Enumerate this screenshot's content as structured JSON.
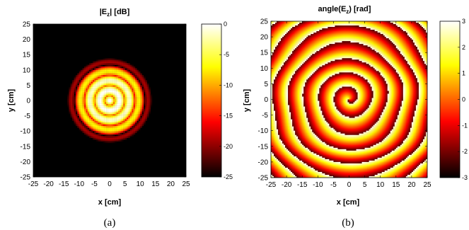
{
  "chart_data": [
    {
      "type": "heatmap",
      "title_main": "|E",
      "title_sub": "z",
      "title_end": "| [dB]",
      "xlabel": "x [cm]",
      "ylabel": "y [cm]",
      "xlim": [
        -25,
        25
      ],
      "ylim": [
        -25,
        25
      ],
      "xticks": [
        -25,
        -20,
        -15,
        -10,
        -5,
        0,
        5,
        10,
        15,
        20,
        25
      ],
      "yticks": [
        25,
        20,
        15,
        10,
        5,
        0,
        -5,
        -10,
        -15,
        -20,
        -25
      ],
      "xtick_labels": [
        "-25",
        "-20",
        "-15",
        "-10",
        "-5",
        "0",
        "5",
        "10",
        "15",
        "20",
        "25"
      ],
      "ytick_labels": [
        "25",
        "20",
        "15",
        "10",
        "5",
        "0",
        "-5",
        "-10",
        "-15",
        "-20",
        "-25"
      ],
      "colorbar": {
        "range": [
          -25,
          0
        ],
        "ticks": [
          0,
          -5,
          -10,
          -15,
          -20,
          -25
        ],
        "tick_labels": [
          "0",
          "-5",
          "-10",
          "-15",
          "-20",
          "-25"
        ]
      },
      "colormap": "hot",
      "caption": "(a)"
    },
    {
      "type": "heatmap",
      "title_main": "angle(E",
      "title_sub": "z",
      "title_end": ") [rad]",
      "xlabel": "x [cm]",
      "ylabel": "y [cm]",
      "xlim": [
        -25,
        25
      ],
      "ylim": [
        -25,
        25
      ],
      "xticks": [
        -25,
        -20,
        -15,
        -10,
        -5,
        0,
        5,
        10,
        15,
        20,
        25
      ],
      "yticks": [
        25,
        20,
        15,
        10,
        5,
        0,
        -5,
        -10,
        -15,
        -20,
        -25
      ],
      "xtick_labels": [
        "-25",
        "-20",
        "-15",
        "-10",
        "-5",
        "0",
        "5",
        "10",
        "15",
        "20",
        "25"
      ],
      "ytick_labels": [
        "25",
        "20",
        "15",
        "10",
        "5",
        "0",
        "-5",
        "-10",
        "-15",
        "-20",
        "-25"
      ],
      "colorbar": {
        "range": [
          -3,
          3
        ],
        "ticks": [
          3,
          2,
          1,
          0,
          -1,
          -2,
          -3
        ],
        "tick_labels": [
          "3",
          "2",
          "1",
          "0",
          "-1",
          "-2",
          "-3"
        ]
      },
      "colormap": "hot",
      "caption": "(b)"
    }
  ]
}
